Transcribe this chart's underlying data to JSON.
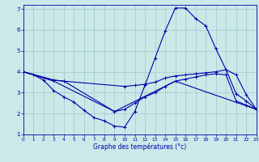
{
  "bg_color": "#cce8e8",
  "grid_color": "#99cccc",
  "line_color": "#0000aa",
  "xlabel": "Graphe des températures (°c)",
  "xlim": [
    0,
    23
  ],
  "ylim": [
    1,
    7.2
  ],
  "xticks": [
    0,
    1,
    2,
    3,
    4,
    5,
    6,
    7,
    8,
    9,
    10,
    11,
    12,
    13,
    14,
    15,
    16,
    17,
    18,
    19,
    20,
    21,
    22,
    23
  ],
  "yticks": [
    1,
    2,
    3,
    4,
    5,
    6,
    7
  ],
  "line1_x": [
    0,
    1,
    2,
    3,
    4,
    5,
    6,
    7,
    8,
    9,
    10,
    11,
    12,
    13,
    14,
    15,
    16,
    17,
    18,
    19,
    20,
    21,
    22,
    23
  ],
  "line1_y": [
    4.0,
    3.85,
    3.6,
    3.1,
    2.8,
    2.55,
    2.15,
    1.8,
    1.65,
    1.4,
    1.35,
    2.1,
    3.35,
    4.65,
    5.95,
    7.05,
    7.05,
    6.55,
    6.2,
    5.1,
    4.1,
    2.95,
    2.6,
    2.2
  ],
  "line2_x": [
    0,
    3,
    4,
    10,
    11,
    12,
    13,
    14,
    15,
    16,
    17,
    18,
    19,
    20,
    21,
    22,
    23
  ],
  "line2_y": [
    4.0,
    3.6,
    3.55,
    3.3,
    3.35,
    3.4,
    3.5,
    3.7,
    3.8,
    3.85,
    3.9,
    3.95,
    4.0,
    4.1,
    3.85,
    2.9,
    2.2
  ],
  "line3_x": [
    0,
    3,
    4,
    9,
    10,
    11,
    12,
    13,
    14,
    15,
    16,
    17,
    18,
    19,
    20,
    21,
    22,
    23
  ],
  "line3_y": [
    4.0,
    3.6,
    3.55,
    2.1,
    2.2,
    2.5,
    2.8,
    3.0,
    3.3,
    3.55,
    3.65,
    3.75,
    3.85,
    3.9,
    3.85,
    2.6,
    2.4,
    2.2
  ],
  "line4_x": [
    0,
    3,
    9,
    15,
    23
  ],
  "line4_y": [
    4.0,
    3.55,
    2.1,
    3.55,
    2.2
  ]
}
